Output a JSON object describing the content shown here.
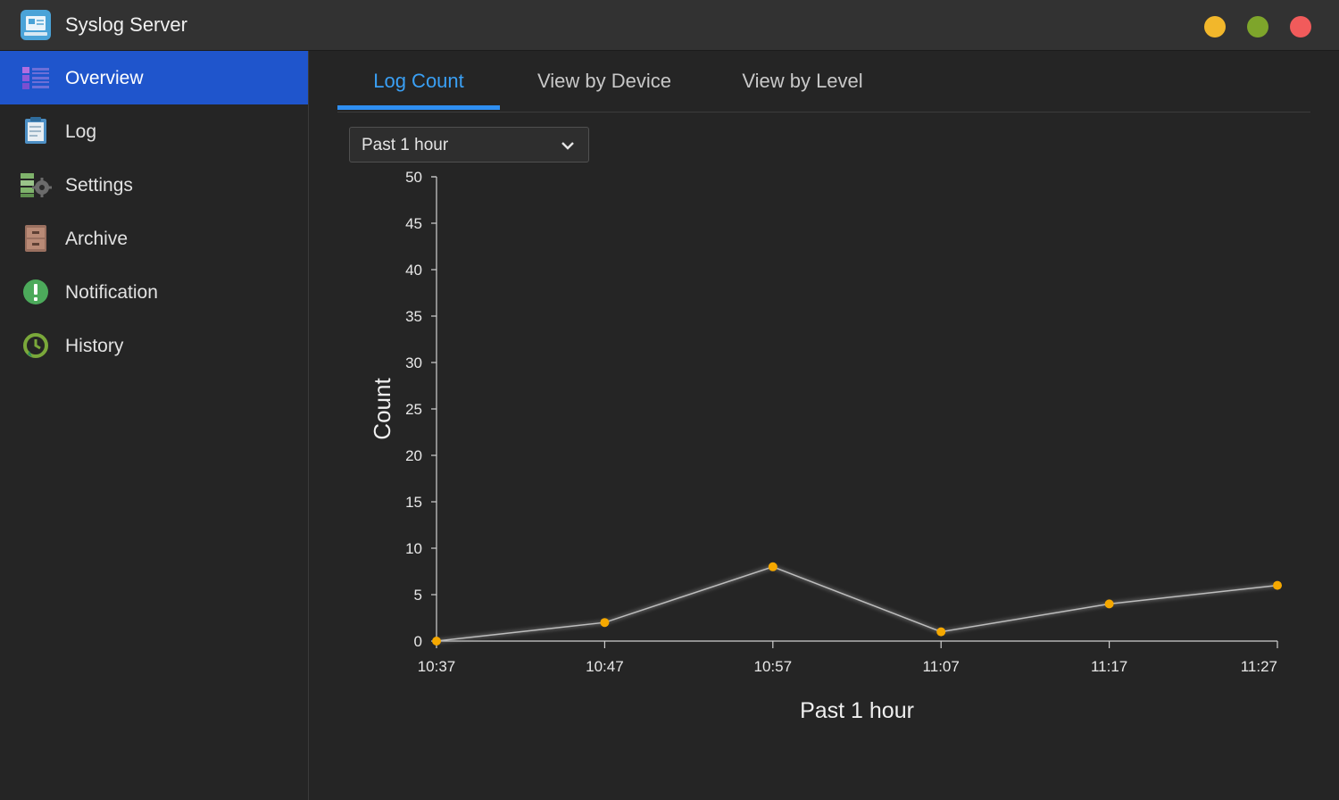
{
  "window": {
    "title": "Syslog Server",
    "icon": "syslog-app-icon",
    "controls": [
      "minimize",
      "maximize",
      "close"
    ],
    "control_colors": {
      "minimize": "#f2b72b",
      "maximize": "#7ea52b",
      "close": "#f15b5b"
    }
  },
  "sidebar": {
    "items": [
      {
        "label": "Overview",
        "icon": "overview-list-icon",
        "active": true
      },
      {
        "label": "Log",
        "icon": "log-notepad-icon",
        "active": false
      },
      {
        "label": "Settings",
        "icon": "settings-gear-icon",
        "active": false
      },
      {
        "label": "Archive",
        "icon": "archive-cabinet-icon",
        "active": false
      },
      {
        "label": "Notification",
        "icon": "notification-exclamation-icon",
        "active": false
      },
      {
        "label": "History",
        "icon": "history-clock-icon",
        "active": false
      }
    ],
    "active_color": "#1f55cc"
  },
  "tabs": [
    {
      "label": "Log Count",
      "active": true
    },
    {
      "label": "View by Device",
      "active": false
    },
    {
      "label": "View by Level",
      "active": false
    }
  ],
  "range_select": {
    "selected": "Past 1 hour"
  },
  "chart_data": {
    "type": "line",
    "x": [
      "10:37",
      "10:47",
      "10:57",
      "11:07",
      "11:17",
      "11:27"
    ],
    "series": [
      {
        "values": [
          0,
          2,
          8,
          1,
          4,
          6
        ]
      }
    ],
    "xlabel": "Past 1 hour",
    "ylabel": "Count",
    "ylim": [
      0,
      50
    ],
    "yticks": [
      0,
      5,
      10,
      15,
      20,
      25,
      30,
      35,
      40,
      45,
      50
    ],
    "grid": false,
    "legend": "none",
    "point_color": "#f5a800",
    "line_color": "#bdbdbd"
  }
}
